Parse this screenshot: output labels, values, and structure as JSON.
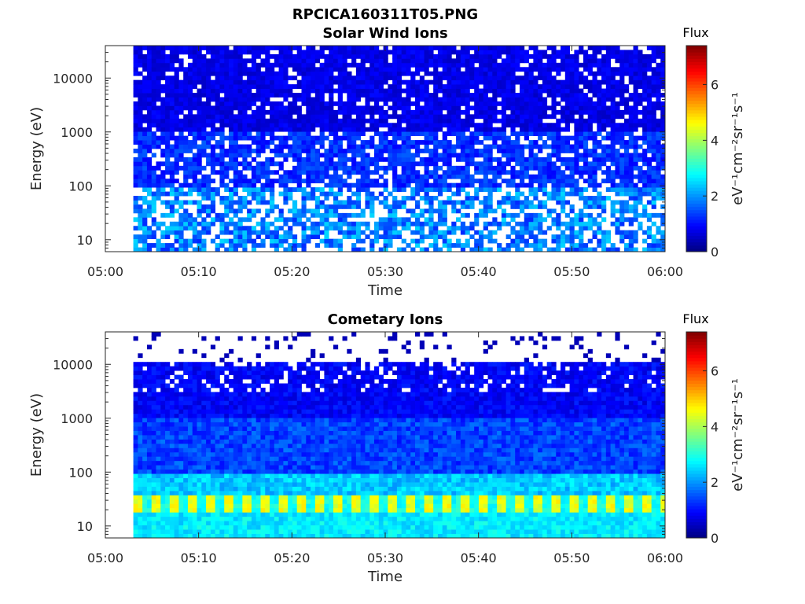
{
  "chart_data": {
    "title": "RPCICA160311T05.PNG",
    "panels": [
      {
        "type": "heatmap",
        "title": "Solar Wind Ions",
        "xlabel": "Time",
        "ylabel": "Energy (eV)",
        "x_range": [
          "05:00",
          "06:00"
        ],
        "x_ticks": [
          "05:00",
          "05:10",
          "05:20",
          "05:30",
          "05:40",
          "05:50",
          "06:00"
        ],
        "y_scale": "log",
        "y_range": [
          6,
          40000
        ],
        "y_ticks": [
          "10",
          "100",
          "1000",
          "10000"
        ],
        "data_start": "05:03",
        "colorbar": {
          "title": "Flux",
          "label": "eV⁻¹cm⁻²sr⁻¹s⁻¹",
          "range": [
            0,
            7.4
          ],
          "ticks": [
            "0",
            "2",
            "4",
            "6"
          ],
          "colormap": "jet"
        }
      },
      {
        "type": "heatmap",
        "title": "Cometary Ions",
        "xlabel": "Time",
        "ylabel": "Energy (eV)",
        "x_range": [
          "05:00",
          "06:00"
        ],
        "x_ticks": [
          "05:00",
          "05:10",
          "05:20",
          "05:30",
          "05:40",
          "05:50",
          "06:00"
        ],
        "y_scale": "log",
        "y_range": [
          6,
          40000
        ],
        "y_ticks": [
          "10",
          "100",
          "1000",
          "10000"
        ],
        "data_start": "05:03",
        "colorbar": {
          "title": "Flux",
          "label": "eV⁻¹cm⁻²sr⁻¹s⁻¹",
          "range": [
            0,
            7.4
          ],
          "ticks": [
            "0",
            "2",
            "4",
            "6"
          ],
          "colormap": "jet"
        }
      }
    ]
  }
}
